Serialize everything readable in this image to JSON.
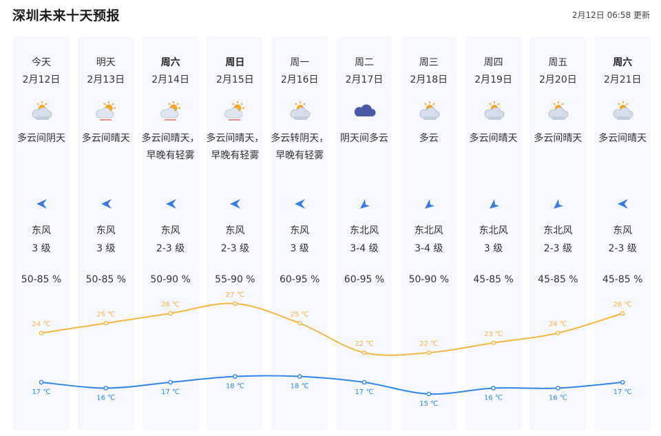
{
  "header": {
    "title": "深圳未来十天预报",
    "updated": "2月12日 06:58 更新"
  },
  "days": [
    {
      "day": "今天",
      "bold": false,
      "date": "2月12日",
      "icon": "partly-cloudy-icon",
      "desc": "多云间阴天",
      "wind_dir": "东风",
      "wind_level": "3 级",
      "wind_arrow": "arrow-west-icon",
      "humidity": "50-85 %"
    },
    {
      "day": "明天",
      "bold": false,
      "date": "2月13日",
      "icon": "partly-sunny-icon",
      "desc": "多云间晴天",
      "wind_dir": "东风",
      "wind_level": "3 级",
      "wind_arrow": "arrow-west-icon",
      "humidity": "50-85 %"
    },
    {
      "day": "周六",
      "bold": true,
      "date": "2月14日",
      "icon": "partly-sunny-icon",
      "desc": "多云间晴天，早晚有轻雾",
      "wind_dir": "东风",
      "wind_level": "2-3 级",
      "wind_arrow": "arrow-west-icon",
      "humidity": "50-90 %"
    },
    {
      "day": "周日",
      "bold": true,
      "date": "2月15日",
      "icon": "partly-sunny-icon",
      "desc": "多云间晴天，早晚有轻雾",
      "wind_dir": "东风",
      "wind_level": "2-3 级",
      "wind_arrow": "arrow-west-icon",
      "humidity": "55-90 %"
    },
    {
      "day": "周一",
      "bold": false,
      "date": "2月16日",
      "icon": "partly-cloudy-icon",
      "desc": "多云转阴天，早晚有轻雾",
      "wind_dir": "东风",
      "wind_level": "3 级",
      "wind_arrow": "arrow-west-icon",
      "humidity": "60-95 %"
    },
    {
      "day": "周二",
      "bold": false,
      "date": "2月17日",
      "icon": "overcast-icon",
      "desc": "阴天间多云",
      "wind_dir": "东北风",
      "wind_level": "3-4 级",
      "wind_arrow": "arrow-southwest-icon",
      "humidity": "60-95 %"
    },
    {
      "day": "周三",
      "bold": false,
      "date": "2月18日",
      "icon": "partly-cloudy-icon",
      "desc": "多云",
      "wind_dir": "东北风",
      "wind_level": "3-4 级",
      "wind_arrow": "arrow-southwest-icon",
      "humidity": "50-90 %"
    },
    {
      "day": "周四",
      "bold": false,
      "date": "2月19日",
      "icon": "partly-cloudy-icon",
      "desc": "多云间晴天",
      "wind_dir": "东北风",
      "wind_level": "3 级",
      "wind_arrow": "arrow-southwest-icon",
      "humidity": "45-85 %"
    },
    {
      "day": "周五",
      "bold": false,
      "date": "2月20日",
      "icon": "partly-cloudy-icon",
      "desc": "多云间晴天",
      "wind_dir": "东北风",
      "wind_level": "2-3 级",
      "wind_arrow": "arrow-southwest-icon",
      "humidity": "45-85 %"
    },
    {
      "day": "周六",
      "bold": true,
      "date": "2月21日",
      "icon": "partly-cloudy-icon",
      "desc": "多云间晴天",
      "wind_dir": "东风",
      "wind_level": "2-3 级",
      "wind_arrow": "arrow-west-icon",
      "humidity": "45-85 %"
    }
  ],
  "colors": {
    "high": "#f5b641",
    "low": "#2f86e8",
    "card": "#f6f8fd",
    "arrow": "#3b7be0"
  },
  "chart_data": {
    "type": "line",
    "x": [
      "2月12日",
      "2月13日",
      "2月14日",
      "2月15日",
      "2月16日",
      "2月17日",
      "2月18日",
      "2月19日",
      "2月20日",
      "2月21日"
    ],
    "series": [
      {
        "key": "high",
        "values": [
          24,
          25,
          26,
          27,
          25,
          22,
          22,
          23,
          24,
          26
        ],
        "labels": [
          "24 ℃",
          "25 ℃",
          "26 ℃",
          "27 ℃",
          "25 ℃",
          "22 ℃",
          "22 ℃",
          "23 ℃",
          "24 ℃",
          "26 ℃"
        ]
      },
      {
        "key": "low",
        "values": [
          17,
          16,
          17,
          18,
          18,
          17,
          15,
          16,
          16,
          17
        ],
        "labels": [
          "17 ℃",
          "16 ℃",
          "17 ℃",
          "18 ℃",
          "18 ℃",
          "17 ℃",
          "15 ℃",
          "16 ℃",
          "16 ℃",
          "17 ℃"
        ]
      }
    ]
  }
}
